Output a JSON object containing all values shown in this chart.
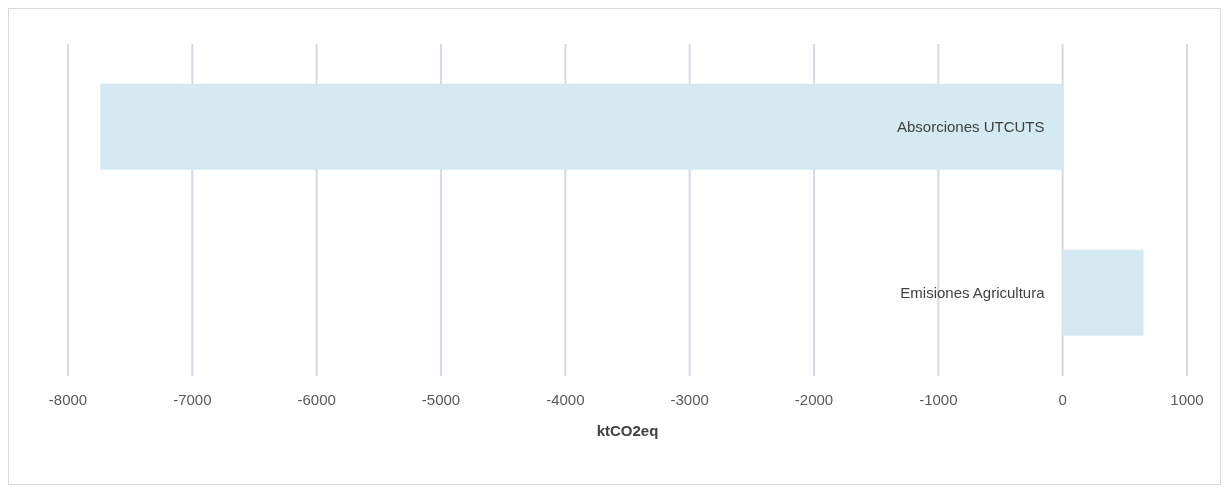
{
  "chart_data": {
    "type": "bar",
    "orientation": "horizontal",
    "categories": [
      "Absorciones UTCUTS",
      "Emisiones Agricultura"
    ],
    "values": [
      -7740,
      650
    ],
    "color": "#d4e9f1",
    "xlabel": "ktCO2eq",
    "xlim": [
      -8000,
      1000
    ],
    "xticks": [
      -8000,
      -7000,
      -6000,
      -5000,
      -4000,
      -3000,
      -2000,
      -1000,
      0,
      1000
    ],
    "grid": "x"
  }
}
